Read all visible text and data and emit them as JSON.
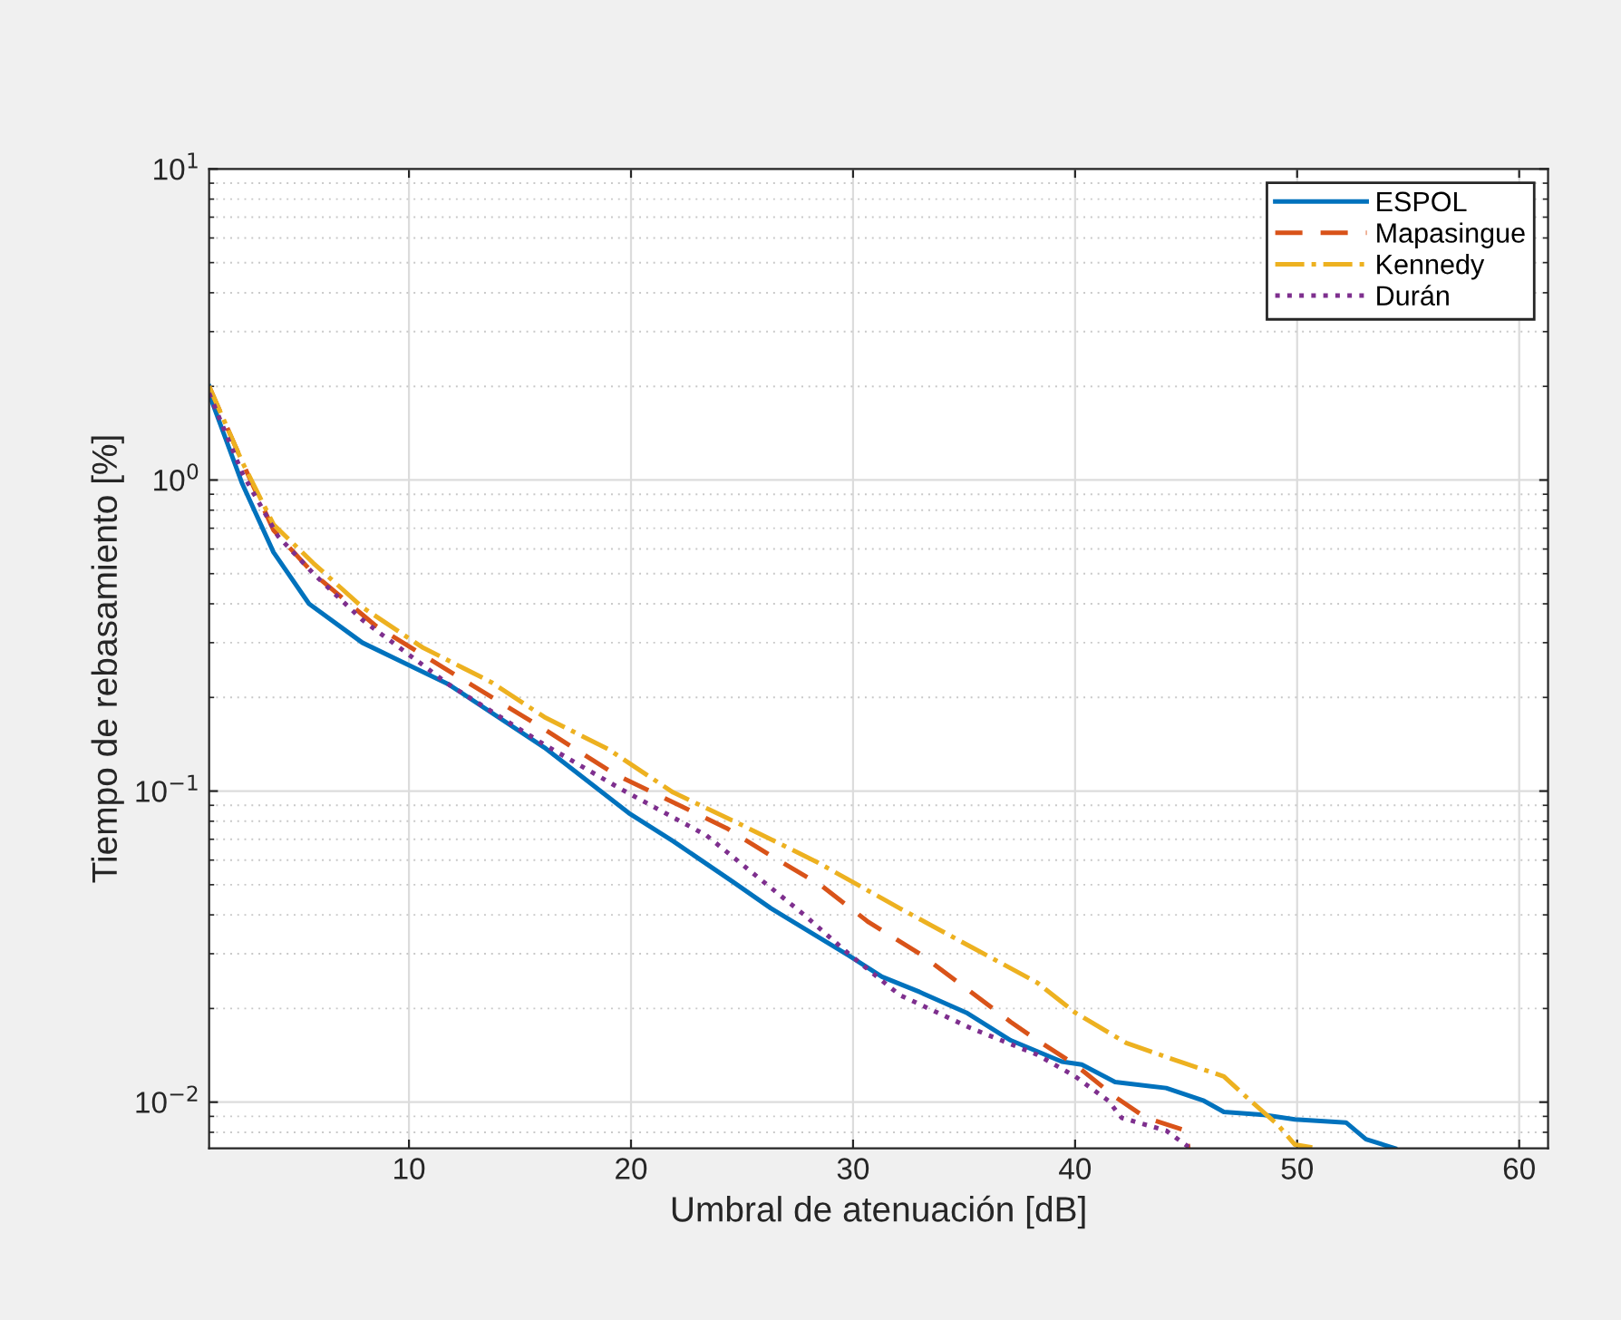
{
  "chart_data": {
    "type": "line",
    "xlabel": "Umbral de atenuación [dB]",
    "ylabel": "Tiempo de rebasamiento [%]",
    "log": "y",
    "xlim": [
      1,
      61.3
    ],
    "ylim": [
      0.0071,
      10
    ],
    "xticks": [
      10,
      20,
      30,
      40,
      50,
      60
    ],
    "yticks": [
      {
        "value": 0.01,
        "label": "10$^{−2}$"
      },
      {
        "value": 0.1,
        "label": "10$^{−1}$"
      },
      {
        "value": 1,
        "label": "10$^{0}$"
      },
      {
        "value": 10,
        "label": "10$^{1}$"
      }
    ],
    "grid": true,
    "legend": "top right",
    "series": [
      {
        "name": "ESPOL",
        "color": "#0072bd",
        "line_style": "solid",
        "x": [
          1,
          1.1,
          2.5,
          3.9,
          5.5,
          7.9,
          10,
          11.8,
          16.1,
          19.9,
          21.9,
          24.6,
          26.3,
          29.8,
          31.3,
          33,
          35.1,
          37.1,
          39.4,
          40.3,
          41.8,
          44.1,
          45.8,
          46.7,
          48.5,
          49.9,
          52.2,
          53.1,
          54.4
        ],
        "values": [
          2,
          1.81,
          0.97,
          0.586,
          0.4,
          0.3,
          0.254,
          0.22,
          0.138,
          0.085,
          0.069,
          0.051,
          0.042,
          0.0296,
          0.0253,
          0.0226,
          0.0194,
          0.0158,
          0.0135,
          0.0132,
          0.0116,
          0.0111,
          0.0101,
          0.0093,
          0.0091,
          0.0088,
          0.0086,
          0.0076,
          0.0071
        ]
      },
      {
        "name": "Mapasingue",
        "color": "#d95319",
        "line_style": "dashed",
        "x": [
          1,
          2.5,
          3.9,
          5.7,
          8.5,
          12.8,
          16.1,
          19.3,
          21.9,
          24.3,
          26.3,
          28.6,
          30.7,
          33,
          35.1,
          37.1,
          38.3,
          40,
          41.8,
          43.2,
          45,
          45.1
        ],
        "values": [
          2,
          1.14,
          0.69,
          0.5,
          0.34,
          0.22,
          0.158,
          0.113,
          0.092,
          0.076,
          0.062,
          0.0495,
          0.0379,
          0.03,
          0.0232,
          0.0181,
          0.0158,
          0.0132,
          0.0104,
          0.0089,
          0.0081,
          0.0071
        ]
      },
      {
        "name": "Kennedy",
        "color": "#edb120",
        "line_style": "dashdot",
        "x": [
          1,
          2.5,
          3.9,
          5.7,
          7.9,
          10.6,
          13.7,
          16.1,
          19,
          21.9,
          24.8,
          28.4,
          32.1,
          35.3,
          38.3,
          40,
          42.3,
          44.7,
          46.7,
          47.9,
          49.1,
          49.9,
          50.9
        ],
        "values": [
          2,
          1.14,
          0.72,
          0.54,
          0.39,
          0.29,
          0.224,
          0.173,
          0.136,
          0.099,
          0.079,
          0.059,
          0.042,
          0.0316,
          0.0242,
          0.0194,
          0.0155,
          0.0135,
          0.0121,
          0.0101,
          0.0085,
          0.0073,
          0.0071
        ]
      },
      {
        "name": "Durán",
        "color": "#7e2f8e",
        "line_style": "dotted",
        "x": [
          1,
          2.5,
          4.1,
          5.7,
          7.9,
          11.8,
          16.1,
          19.6,
          23.4,
          27.8,
          29.8,
          32.1,
          35.3,
          38.3,
          40,
          41.5,
          42.1,
          44.1,
          45.2
        ],
        "values": [
          1.9,
          1.05,
          0.66,
          0.5,
          0.355,
          0.22,
          0.141,
          0.101,
          0.072,
          0.04,
          0.03,
          0.0221,
          0.0173,
          0.0142,
          0.0121,
          0.0101,
          0.0089,
          0.0081,
          0.0071
        ]
      }
    ]
  }
}
